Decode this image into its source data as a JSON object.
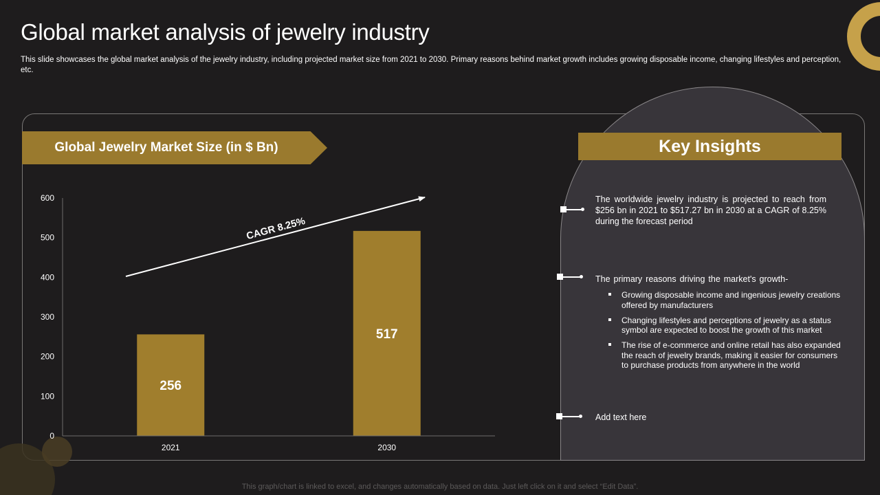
{
  "slide": {
    "title": "Global market analysis of jewelry industry",
    "subtitle": "This slide showcases the global market analysis of the jewelry industry, including projected market size from 2021 to 2030. Primary reasons behind market growth includes growing disposable income, changing lifestyles and perception, etc.",
    "footer": "This graph/chart is linked to excel,  and changes automatically based on data. Just left click on it and select “Edit Data”."
  },
  "colors": {
    "background": "#1e1c1d",
    "gold": "#9a7a2e",
    "bar": "#a07e2d",
    "panel": "#38353a"
  },
  "chart_banner": "Global Jewelry Market Size (in $ Bn)",
  "insights": {
    "title": "Key Insights",
    "point1": "The worldwide jewelry industry is projected to reach from $256 bn in 2021 to $517.27 bn in 2030 at a CAGR of 8.25% during the forecast period",
    "point2": "The primary reasons driving the market's growth-",
    "bullets": [
      "Growing disposable income and ingenious jewelry creations offered by manufacturers",
      "Changing lifestyles and perceptions of jewelry as a status symbol are expected to boost the growth of this market",
      "The rise of e-commerce and online retail has also expanded the reach of jewelry brands, making it easier for consumers to purchase products from anywhere in the world"
    ],
    "point3": "Add text here"
  },
  "chart_data": {
    "type": "bar",
    "title": "Global Jewelry Market Size (in $ Bn)",
    "categories": [
      "2021",
      "2030"
    ],
    "values": [
      256,
      517
    ],
    "data_labels": [
      "256",
      "517"
    ],
    "ylim": [
      0,
      600
    ],
    "yticks": [
      0,
      100,
      200,
      300,
      400,
      500,
      600
    ],
    "xlabel": "",
    "ylabel": "",
    "grid": false,
    "annotation": "CAGR 8.25%"
  }
}
